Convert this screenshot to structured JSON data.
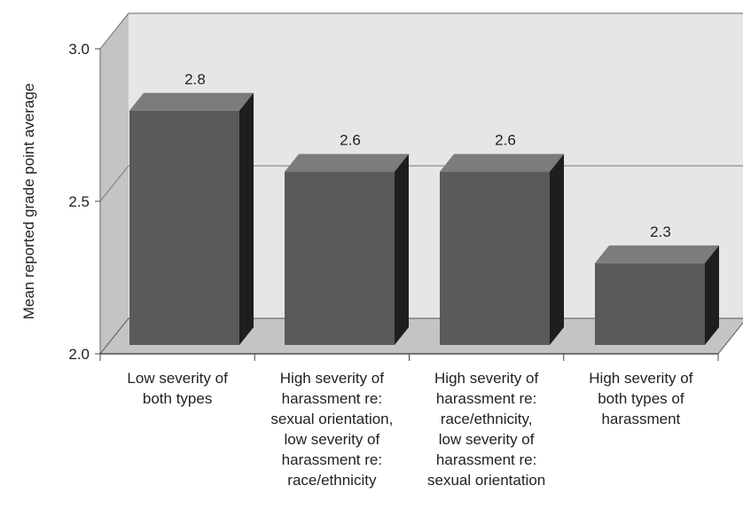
{
  "chart_data": {
    "type": "bar",
    "style": "3d",
    "ylabel": "Mean reported grade point average",
    "xlabel": "",
    "ylim": [
      2.0,
      3.0
    ],
    "yticks": [
      "2.0",
      "2.5",
      "3.0"
    ],
    "grid": true,
    "categories": [
      [
        "Low severity of",
        "both types"
      ],
      [
        "High severity of",
        "harassment re:",
        "sexual orientation,",
        "low severity of",
        "harassment re:",
        "race/ethnicity"
      ],
      [
        "High severity of",
        "harassment re:",
        "race/ethnicity,",
        "low severity of",
        "harassment re:",
        "sexual orientation"
      ],
      [
        "High severity of",
        "both types of",
        "harassment"
      ]
    ],
    "values": [
      2.8,
      2.6,
      2.6,
      2.3
    ],
    "data_labels": [
      "2.8",
      "2.6",
      "2.6",
      "2.3"
    ],
    "colors": {
      "bar_front": "#5a5a5c",
      "bar_top": "#7c7c7e",
      "bar_side": "#1e1e1f",
      "back_wall": "#e6e6e6",
      "left_wall": "#c4c4c4",
      "floor": "#c4c4c4"
    }
  }
}
